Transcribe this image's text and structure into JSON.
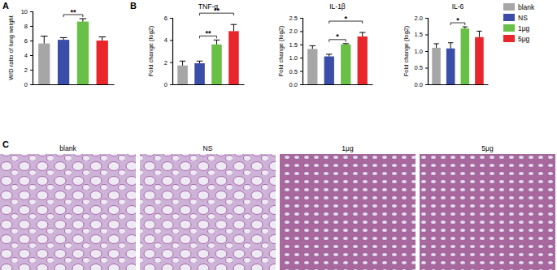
{
  "chart_data": [
    {
      "type": "bar",
      "y_label": "W/D ratio of lung weight",
      "categories": [
        "blank",
        "NS",
        "1μg",
        "5μg"
      ],
      "values": [
        5.6,
        6.1,
        8.6,
        6.0
      ],
      "errors": [
        1.0,
        0.3,
        0.4,
        0.5
      ],
      "colors": [
        "#a6a6a6",
        "#3a4da8",
        "#69c046",
        "#e8262b"
      ],
      "ylim": [
        0,
        10
      ],
      "yticks": [
        0,
        2,
        4,
        6,
        8,
        10
      ],
      "tick_labels": "y",
      "annotations": [
        {
          "text": "**",
          "between": [
            "NS",
            "1μg"
          ]
        }
      ]
    },
    {
      "type": "bar",
      "title": "TNF-α",
      "y_label": "Fold change (log2)",
      "categories": [
        "blank",
        "NS",
        "1μg",
        "5μg"
      ],
      "values": [
        1.7,
        1.9,
        3.6,
        4.8
      ],
      "errors": [
        0.4,
        0.2,
        0.4,
        0.6
      ],
      "colors": [
        "#a6a6a6",
        "#3a4da8",
        "#69c046",
        "#e8262b"
      ],
      "ylim": [
        0,
        6
      ],
      "yticks": [
        0,
        2,
        4,
        6
      ],
      "tick_labels": "y",
      "annotations": [
        {
          "text": "**",
          "between": [
            "NS",
            "1μg"
          ]
        },
        {
          "text": "**",
          "between": [
            "NS",
            "5μg"
          ]
        }
      ]
    },
    {
      "type": "bar",
      "title": "IL-1β",
      "y_label": "Fold change (log2)",
      "categories": [
        "blank",
        "NS",
        "1μg",
        "5μg"
      ],
      "values": [
        1.33,
        1.05,
        1.5,
        1.8
      ],
      "errors": [
        0.12,
        0.08,
        0.03,
        0.15
      ],
      "colors": [
        "#a6a6a6",
        "#3a4da8",
        "#69c046",
        "#e8262b"
      ],
      "ylim": [
        0,
        2.5
      ],
      "yticks": [
        {
          "value": 0,
          "label": "0.0"
        },
        0.5,
        {
          "value": 1,
          "label": "1.0"
        },
        1.5,
        {
          "value": 2,
          "label": "2.0"
        },
        2.5
      ],
      "tick_labels": "y",
      "annotations": [
        {
          "text": "*",
          "between": [
            "NS",
            "1μg"
          ]
        },
        {
          "text": "*",
          "between": [
            "NS",
            "5μg"
          ]
        }
      ]
    },
    {
      "type": "bar",
      "title": "IL-6",
      "y_label": "Fold change (log2)",
      "categories": [
        "blank",
        "NS",
        "1μg",
        "5μg"
      ],
      "values": [
        1.1,
        1.08,
        1.68,
        1.42
      ],
      "errors": [
        0.12,
        0.17,
        0.05,
        0.18
      ],
      "colors": [
        "#a6a6a6",
        "#3a4da8",
        "#69c046",
        "#e8262b"
      ],
      "ylim": [
        0,
        2.0
      ],
      "yticks": [
        {
          "value": 0,
          "label": "0.0"
        },
        0.5,
        {
          "value": 1,
          "label": "1.0"
        },
        1.5,
        {
          "value": 2,
          "label": "2.0"
        }
      ],
      "tick_labels": "y",
      "legend": "upper right",
      "annotations": [
        {
          "text": "*",
          "between": [
            "NS",
            "1μg"
          ]
        }
      ]
    }
  ],
  "panel_labels": [
    "A",
    "B",
    "C"
  ],
  "images": {
    "labels": [
      "blank",
      "NS",
      "1μg",
      "5μg"
    ]
  }
}
